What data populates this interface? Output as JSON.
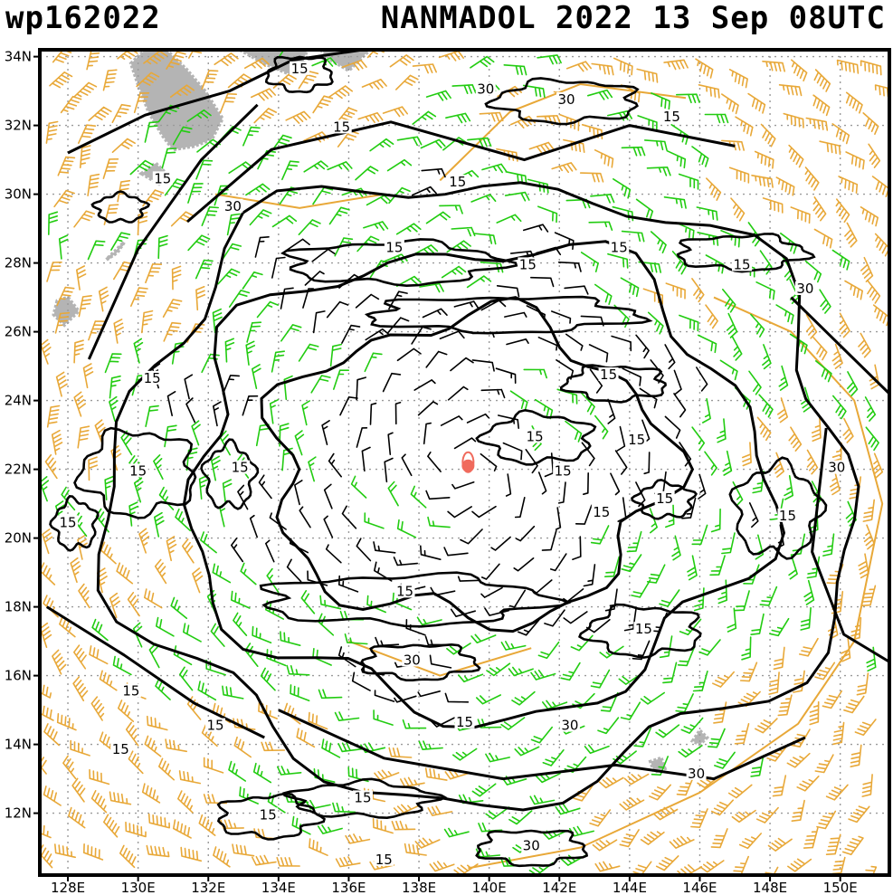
{
  "header": {
    "storm_id": "wp162022",
    "storm_info": "NANMADOL 2022 13 Sep 08UTC"
  },
  "axes": {
    "lat_labels": [
      "34N",
      "32N",
      "30N",
      "28N",
      "26N",
      "24N",
      "22N",
      "20N",
      "18N",
      "16N",
      "14N",
      "12N"
    ],
    "lat_values": [
      34,
      32,
      30,
      28,
      26,
      24,
      22,
      20,
      18,
      16,
      14,
      12
    ],
    "lon_labels": [
      "128E",
      "130E",
      "132E",
      "134E",
      "136E",
      "138E",
      "140E",
      "142E",
      "144E",
      "146E",
      "148E",
      "150E"
    ],
    "lon_values": [
      128,
      130,
      132,
      134,
      136,
      138,
      140,
      142,
      144,
      146,
      148,
      150
    ],
    "lat_range": [
      10.2,
      34.2
    ],
    "lon_range": [
      127.2,
      151.4
    ]
  },
  "contour_labels": [
    {
      "text": "15",
      "lon": 134.6,
      "lat": 33.6
    },
    {
      "text": "15",
      "lon": 135.8,
      "lat": 31.9
    },
    {
      "text": "15",
      "lon": 130.7,
      "lat": 30.4
    },
    {
      "text": "30",
      "lon": 132.7,
      "lat": 29.6
    },
    {
      "text": "30",
      "lon": 139.9,
      "lat": 33.0
    },
    {
      "text": "30",
      "lon": 142.2,
      "lat": 32.7
    },
    {
      "text": "15",
      "lon": 145.2,
      "lat": 32.2
    },
    {
      "text": "15",
      "lon": 139.1,
      "lat": 30.3
    },
    {
      "text": "15",
      "lon": 137.3,
      "lat": 28.4
    },
    {
      "text": "15",
      "lon": 141.1,
      "lat": 27.9
    },
    {
      "text": "15",
      "lon": 143.7,
      "lat": 28.4
    },
    {
      "text": "15",
      "lon": 147.2,
      "lat": 27.9
    },
    {
      "text": "30",
      "lon": 149.0,
      "lat": 27.2
    },
    {
      "text": "15",
      "lon": 130.4,
      "lat": 24.6
    },
    {
      "text": "15",
      "lon": 143.4,
      "lat": 24.7
    },
    {
      "text": "15",
      "lon": 141.3,
      "lat": 22.9
    },
    {
      "text": "15",
      "lon": 144.2,
      "lat": 22.8
    },
    {
      "text": "30",
      "lon": 149.9,
      "lat": 22.0
    },
    {
      "text": "15",
      "lon": 130.0,
      "lat": 21.9
    },
    {
      "text": "15",
      "lon": 132.9,
      "lat": 22.0
    },
    {
      "text": "15",
      "lon": 142.1,
      "lat": 21.9
    },
    {
      "text": "15",
      "lon": 145.0,
      "lat": 21.1
    },
    {
      "text": "15",
      "lon": 143.2,
      "lat": 20.7
    },
    {
      "text": "15",
      "lon": 148.5,
      "lat": 20.6
    },
    {
      "text": "15",
      "lon": 128.0,
      "lat": 20.4
    },
    {
      "text": "15",
      "lon": 137.6,
      "lat": 18.4
    },
    {
      "text": "15",
      "lon": 144.4,
      "lat": 17.3
    },
    {
      "text": "30",
      "lon": 137.8,
      "lat": 16.4
    },
    {
      "text": "15",
      "lon": 129.8,
      "lat": 15.5
    },
    {
      "text": "15",
      "lon": 139.3,
      "lat": 14.6
    },
    {
      "text": "30",
      "lon": 142.3,
      "lat": 14.5
    },
    {
      "text": "15",
      "lon": 132.2,
      "lat": 14.5
    },
    {
      "text": "15",
      "lon": 129.5,
      "lat": 13.8
    },
    {
      "text": "30",
      "lon": 145.9,
      "lat": 13.1
    },
    {
      "text": "15",
      "lon": 136.4,
      "lat": 12.4
    },
    {
      "text": "15",
      "lon": 133.7,
      "lat": 11.9
    },
    {
      "text": "30",
      "lon": 141.2,
      "lat": 11.0
    },
    {
      "text": "15",
      "lon": 137.0,
      "lat": 10.6
    }
  ],
  "storm_center": {
    "lon": 139.4,
    "lat": 22.1,
    "color": "#f06a5c"
  },
  "colors": {
    "barb_weak": "#000000",
    "barb_medium": "#22cc11",
    "barb_strong": "#e8a838",
    "land": "#b4b4b4",
    "grid": "#9a9a9a",
    "contour": "#000000",
    "orange_contour": "#e8a838"
  }
}
